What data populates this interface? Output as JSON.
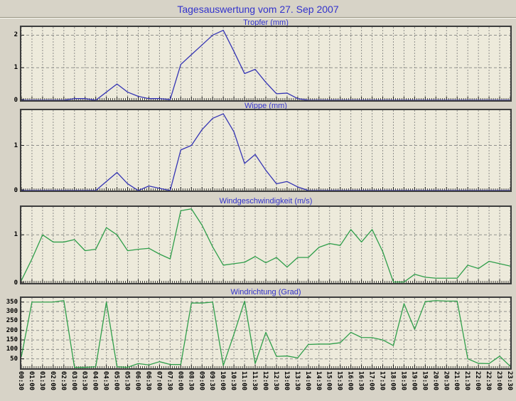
{
  "page": {
    "title": "Tagesauswertung vom 27. Sep 2007"
  },
  "colors": {
    "background": "#d7d3c7",
    "plot_background": "#edeadb",
    "frame": "#3d3d3d",
    "grid": "#8f8f8b",
    "tick": "#1a1a1a",
    "title_blue": "#3333cc",
    "rain_line_blue": "#3434b4",
    "wind_line_green": "#2f9e4a"
  },
  "chart_data": {
    "type": "line",
    "grid": "on",
    "x_tick_rotation": 90,
    "categories": [
      "00:30",
      "01:00",
      "01:30",
      "02:00",
      "02:30",
      "03:00",
      "03:30",
      "04:00",
      "04:30",
      "05:00",
      "05:30",
      "06:00",
      "06:30",
      "07:00",
      "07:30",
      "08:00",
      "08:30",
      "09:00",
      "09:30",
      "10:00",
      "10:30",
      "11:00",
      "11:30",
      "12:00",
      "12:30",
      "13:00",
      "13:30",
      "14:00",
      "14:30",
      "15:00",
      "15:30",
      "16:00",
      "16:30",
      "17:00",
      "17:30",
      "18:00",
      "18:30",
      "19:00",
      "19:30",
      "20:00",
      "20:30",
      "21:00",
      "21:30",
      "22:00",
      "22:30",
      "23:00",
      "23:30"
    ],
    "charts": [
      {
        "title": "Tropfer (mm)",
        "line_color": "#3434b4",
        "ylim": [
          0,
          2.25
        ],
        "y_ticks": [
          0,
          1,
          2
        ],
        "values": [
          0,
          0,
          0,
          0,
          0,
          0.05,
          0.05,
          0,
          0.25,
          0.5,
          0.25,
          0.12,
          0.05,
          0.05,
          0.02,
          1.1,
          1.4,
          1.7,
          2.0,
          2.15,
          1.5,
          0.82,
          0.95,
          0.55,
          0.2,
          0.22,
          0.05,
          0,
          0,
          0,
          0,
          0,
          0,
          0,
          0,
          0,
          0,
          0,
          0,
          0,
          0,
          0,
          0,
          0,
          0,
          0,
          0
        ]
      },
      {
        "title": "Wippe (mm)",
        "line_color": "#3434b4",
        "ylim": [
          0,
          1.78
        ],
        "y_ticks": [
          0,
          1
        ],
        "values": [
          0,
          0,
          0,
          0,
          0,
          0,
          0,
          0,
          0.2,
          0.4,
          0.15,
          0,
          0.1,
          0.05,
          0,
          0.9,
          1.0,
          1.35,
          1.6,
          1.7,
          1.3,
          0.6,
          0.8,
          0.45,
          0.15,
          0.2,
          0.08,
          0,
          0,
          0,
          0,
          0,
          0,
          0,
          0,
          0,
          0,
          0,
          0,
          0,
          0,
          0,
          0,
          0,
          0,
          0,
          0
        ]
      },
      {
        "title": "Windgeschwindigkeit (m/s)",
        "line_color": "#2f9e4a",
        "ylim": [
          0,
          1.58
        ],
        "y_ticks": [
          0,
          1
        ],
        "values": [
          0.05,
          0.5,
          1.0,
          0.85,
          0.85,
          0.9,
          0.67,
          0.7,
          1.15,
          1.0,
          0.67,
          0.7,
          0.72,
          0.6,
          0.5,
          1.5,
          1.54,
          1.2,
          0.75,
          0.37,
          0.4,
          0.43,
          0.55,
          0.42,
          0.53,
          0.33,
          0.53,
          0.53,
          0.74,
          0.82,
          0.78,
          1.11,
          0.85,
          1.11,
          0.65,
          0.02,
          0.02,
          0.18,
          0.12,
          0.1,
          0.1,
          0.1,
          0.37,
          0.3,
          0.45,
          0.4,
          0.35
        ]
      },
      {
        "title": "Windrichtung (Grad)",
        "line_color": "#2f9e4a",
        "ylim": [
          0,
          372
        ],
        "y_ticks": [
          50,
          100,
          150,
          200,
          250,
          300,
          350
        ],
        "values": [
          60,
          350,
          350,
          350,
          358,
          5,
          5,
          8,
          350,
          8,
          5,
          25,
          18,
          35,
          20,
          20,
          345,
          345,
          350,
          15,
          180,
          355,
          25,
          190,
          63,
          65,
          55,
          126,
          128,
          128,
          135,
          190,
          163,
          162,
          150,
          120,
          342,
          206,
          352,
          358,
          355,
          355,
          50,
          26,
          25,
          64,
          10
        ]
      }
    ]
  }
}
